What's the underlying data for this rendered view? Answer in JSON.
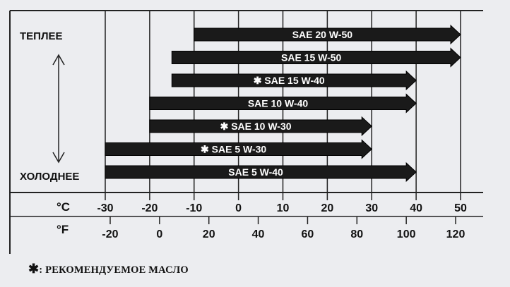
{
  "chart_data": {
    "type": "bar",
    "orientation": "horizontal-range",
    "title": "",
    "direction_labels": {
      "warmer": "ТЕПЛЕЕ",
      "colder": "ХОЛОДНЕЕ"
    },
    "units": {
      "celsius": "°C",
      "fahrenheit": "°F"
    },
    "celsius_ticks": [
      -30,
      -20,
      -10,
      0,
      10,
      20,
      30,
      40,
      50
    ],
    "fahrenheit_ticks": [
      -20,
      0,
      20,
      40,
      60,
      80,
      100,
      120
    ],
    "xlim_c": [
      -30,
      50
    ],
    "grid": true,
    "series": [
      {
        "name": "SAE 20 W-50",
        "recommended": false,
        "min_c": -10,
        "max_c": 50
      },
      {
        "name": "SAE 15 W-50",
        "recommended": false,
        "min_c": -15,
        "max_c": 50
      },
      {
        "name": "SAE 15 W-40",
        "recommended": true,
        "min_c": -15,
        "max_c": 40
      },
      {
        "name": "SAE 10 W-40",
        "recommended": false,
        "min_c": -20,
        "max_c": 40
      },
      {
        "name": "SAE 10 W-30",
        "recommended": true,
        "min_c": -20,
        "max_c": 30
      },
      {
        "name": "SAE 5 W-30",
        "recommended": true,
        "min_c": -30,
        "max_c": 30
      },
      {
        "name": "SAE 5 W-40",
        "recommended": false,
        "min_c": -30,
        "max_c": 40
      }
    ],
    "recommended_mark": "✱",
    "arrow_color": "#1a1a1a",
    "label_color": "#ffffff"
  },
  "footnote": {
    "mark": "✱",
    "text": ": РЕКОМЕНДУЕМОЕ МАСЛО"
  }
}
